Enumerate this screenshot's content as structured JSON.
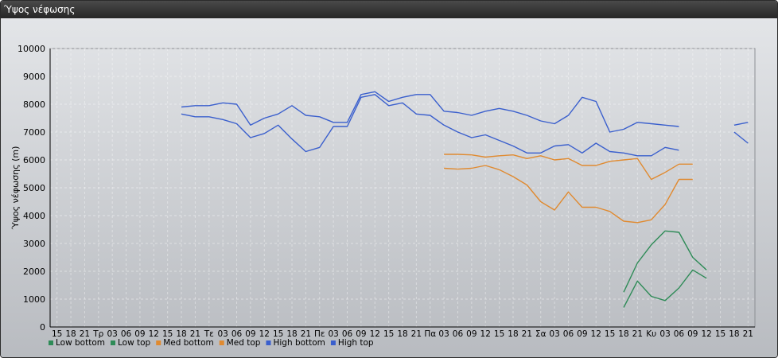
{
  "window": {
    "title": "Ύψος νέφωσης"
  },
  "chart_data": {
    "type": "line",
    "ylabel": "Ύψος νέφωσης (m)",
    "xlabel": "",
    "ylim": [
      0,
      10000
    ],
    "yticks": [
      0,
      1000,
      2000,
      3000,
      4000,
      5000,
      6000,
      7000,
      8000,
      9000,
      10000
    ],
    "x_tick_labels": [
      "15",
      "18",
      "21",
      "Τρ",
      "03",
      "06",
      "09",
      "12",
      "15",
      "18",
      "21",
      "Τε",
      "03",
      "06",
      "09",
      "12",
      "15",
      "18",
      "21",
      "Πε",
      "03",
      "06",
      "09",
      "12",
      "15",
      "18",
      "21",
      "Πα",
      "03",
      "06",
      "09",
      "12",
      "15",
      "18",
      "21",
      "Σα",
      "03",
      "06",
      "09",
      "12",
      "15",
      "18",
      "21",
      "Κυ",
      "03",
      "06",
      "09",
      "12",
      "15",
      "18",
      "21"
    ],
    "grid": true,
    "legend_position": "bottom-left",
    "series": [
      {
        "name": "Low bottom",
        "color": "#2e8b57",
        "values": [
          null,
          null,
          null,
          null,
          null,
          null,
          null,
          null,
          null,
          null,
          null,
          null,
          null,
          null,
          null,
          null,
          null,
          null,
          null,
          null,
          null,
          null,
          null,
          null,
          null,
          null,
          null,
          null,
          null,
          null,
          null,
          null,
          null,
          null,
          null,
          null,
          null,
          null,
          null,
          null,
          null,
          700,
          1650,
          1100,
          950,
          1400,
          2050,
          1750,
          null,
          null,
          null
        ]
      },
      {
        "name": "Low top",
        "color": "#2e8b57",
        "values": [
          null,
          null,
          null,
          null,
          null,
          null,
          null,
          null,
          null,
          null,
          null,
          null,
          null,
          null,
          null,
          null,
          null,
          null,
          null,
          null,
          null,
          null,
          null,
          null,
          null,
          null,
          null,
          null,
          null,
          null,
          null,
          null,
          null,
          null,
          null,
          null,
          null,
          null,
          null,
          null,
          null,
          1250,
          2300,
          2950,
          3450,
          3400,
          2500,
          2050,
          null,
          null,
          null
        ]
      },
      {
        "name": "Med bottom",
        "color": "#e08a30",
        "values": [
          null,
          null,
          null,
          null,
          null,
          null,
          null,
          null,
          null,
          null,
          null,
          null,
          null,
          null,
          null,
          null,
          null,
          null,
          null,
          null,
          null,
          null,
          null,
          null,
          null,
          null,
          null,
          null,
          5700,
          5670,
          5700,
          5800,
          5650,
          5400,
          5100,
          4500,
          4200,
          4850,
          4300,
          4300,
          4150,
          3800,
          3750,
          3850,
          4400,
          5300,
          5300,
          null,
          null,
          null,
          null
        ]
      },
      {
        "name": "Med top",
        "color": "#e08a30",
        "values": [
          null,
          null,
          null,
          null,
          null,
          null,
          null,
          null,
          null,
          null,
          null,
          null,
          null,
          null,
          null,
          null,
          null,
          null,
          null,
          null,
          null,
          null,
          null,
          null,
          null,
          null,
          null,
          null,
          6200,
          6200,
          6180,
          6100,
          6150,
          6180,
          6050,
          6150,
          6000,
          6050,
          5800,
          5800,
          5950,
          6000,
          6050,
          5300,
          5550,
          5850,
          5850,
          null,
          null,
          null,
          null
        ]
      },
      {
        "name": "High bottom",
        "color": "#3a5fcd",
        "values": [
          null,
          null,
          null,
          null,
          null,
          null,
          null,
          null,
          null,
          7650,
          7550,
          7550,
          7450,
          7300,
          6800,
          6950,
          7250,
          6750,
          6300,
          6450,
          7200,
          7200,
          8250,
          8350,
          7950,
          8050,
          7650,
          7600,
          7250,
          7000,
          6800,
          6900,
          6700,
          6500,
          6250,
          6250,
          6500,
          6550,
          6250,
          6600,
          6300,
          6250,
          6150,
          6150,
          6450,
          6350,
          null,
          null,
          null,
          7000,
          6600
        ]
      },
      {
        "name": "High top",
        "color": "#3a5fcd",
        "values": [
          null,
          null,
          null,
          null,
          null,
          null,
          null,
          null,
          null,
          7900,
          7950,
          7950,
          8050,
          8000,
          7250,
          7500,
          7650,
          7950,
          7600,
          7550,
          7350,
          7350,
          8350,
          8450,
          8100,
          8250,
          8350,
          8350,
          7750,
          7700,
          7600,
          7750,
          7850,
          7750,
          7600,
          7400,
          7300,
          7600,
          8250,
          8100,
          7000,
          7100,
          7350,
          7300,
          7250,
          7200,
          null,
          null,
          null,
          7250,
          7350
        ]
      }
    ]
  }
}
